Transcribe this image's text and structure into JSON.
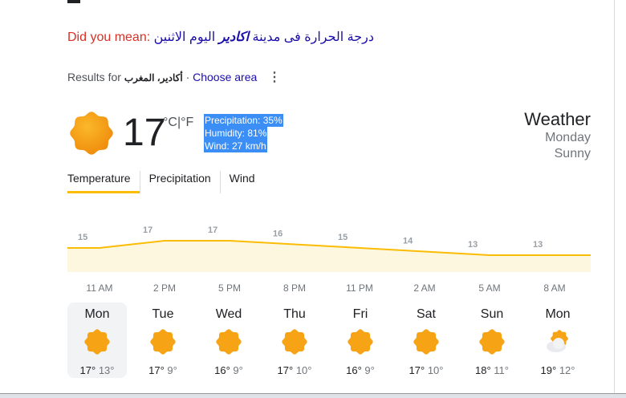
{
  "did_you_mean": {
    "label": "Did you mean:",
    "query_prefix": "درجة الحرارة فى مدينة",
    "query_bold": "اكادير",
    "query_suffix": "اليوم الاثنين"
  },
  "results": {
    "prefix": "Results for",
    "place": "أكادير، المغرب",
    "separator": "·",
    "choose_area": "Choose area"
  },
  "current": {
    "temp": "17",
    "unit_c": "°C",
    "unit_sep": "|",
    "unit_f": "°F",
    "precipitation": "Precipitation: 35%",
    "humidity": "Humidity: 81%",
    "wind": "Wind: 27 km/h",
    "icon": "sun-icon"
  },
  "weather": {
    "title": "Weather",
    "day": "Monday",
    "condition": "Sunny"
  },
  "tabs": [
    {
      "label": "Temperature",
      "active": true
    },
    {
      "label": "Precipitation"
    },
    {
      "label": "Wind"
    }
  ],
  "chart_data": {
    "type": "area",
    "x": [
      "11 AM",
      "2 PM",
      "5 PM",
      "8 PM",
      "11 PM",
      "2 AM",
      "5 AM",
      "8 AM"
    ],
    "values": [
      15,
      17,
      17,
      16,
      15,
      14,
      13,
      13
    ],
    "color": "#fbbc04",
    "fill": "#fef7e0"
  },
  "days": [
    {
      "name": "Mon",
      "hi": "17°",
      "lo": "13°",
      "icon": "sun-icon",
      "selected": true
    },
    {
      "name": "Tue",
      "hi": "17°",
      "lo": "9°",
      "icon": "sun-icon"
    },
    {
      "name": "Wed",
      "hi": "16°",
      "lo": "9°",
      "icon": "sun-icon"
    },
    {
      "name": "Thu",
      "hi": "17°",
      "lo": "10°",
      "icon": "sun-icon"
    },
    {
      "name": "Fri",
      "hi": "16°",
      "lo": "9°",
      "icon": "sun-icon"
    },
    {
      "name": "Sat",
      "hi": "17°",
      "lo": "10°",
      "icon": "sun-icon"
    },
    {
      "name": "Sun",
      "hi": "18°",
      "lo": "11°",
      "icon": "sun-icon"
    },
    {
      "name": "Mon",
      "hi": "19°",
      "lo": "12°",
      "icon": "partly-cloudy-icon"
    }
  ]
}
